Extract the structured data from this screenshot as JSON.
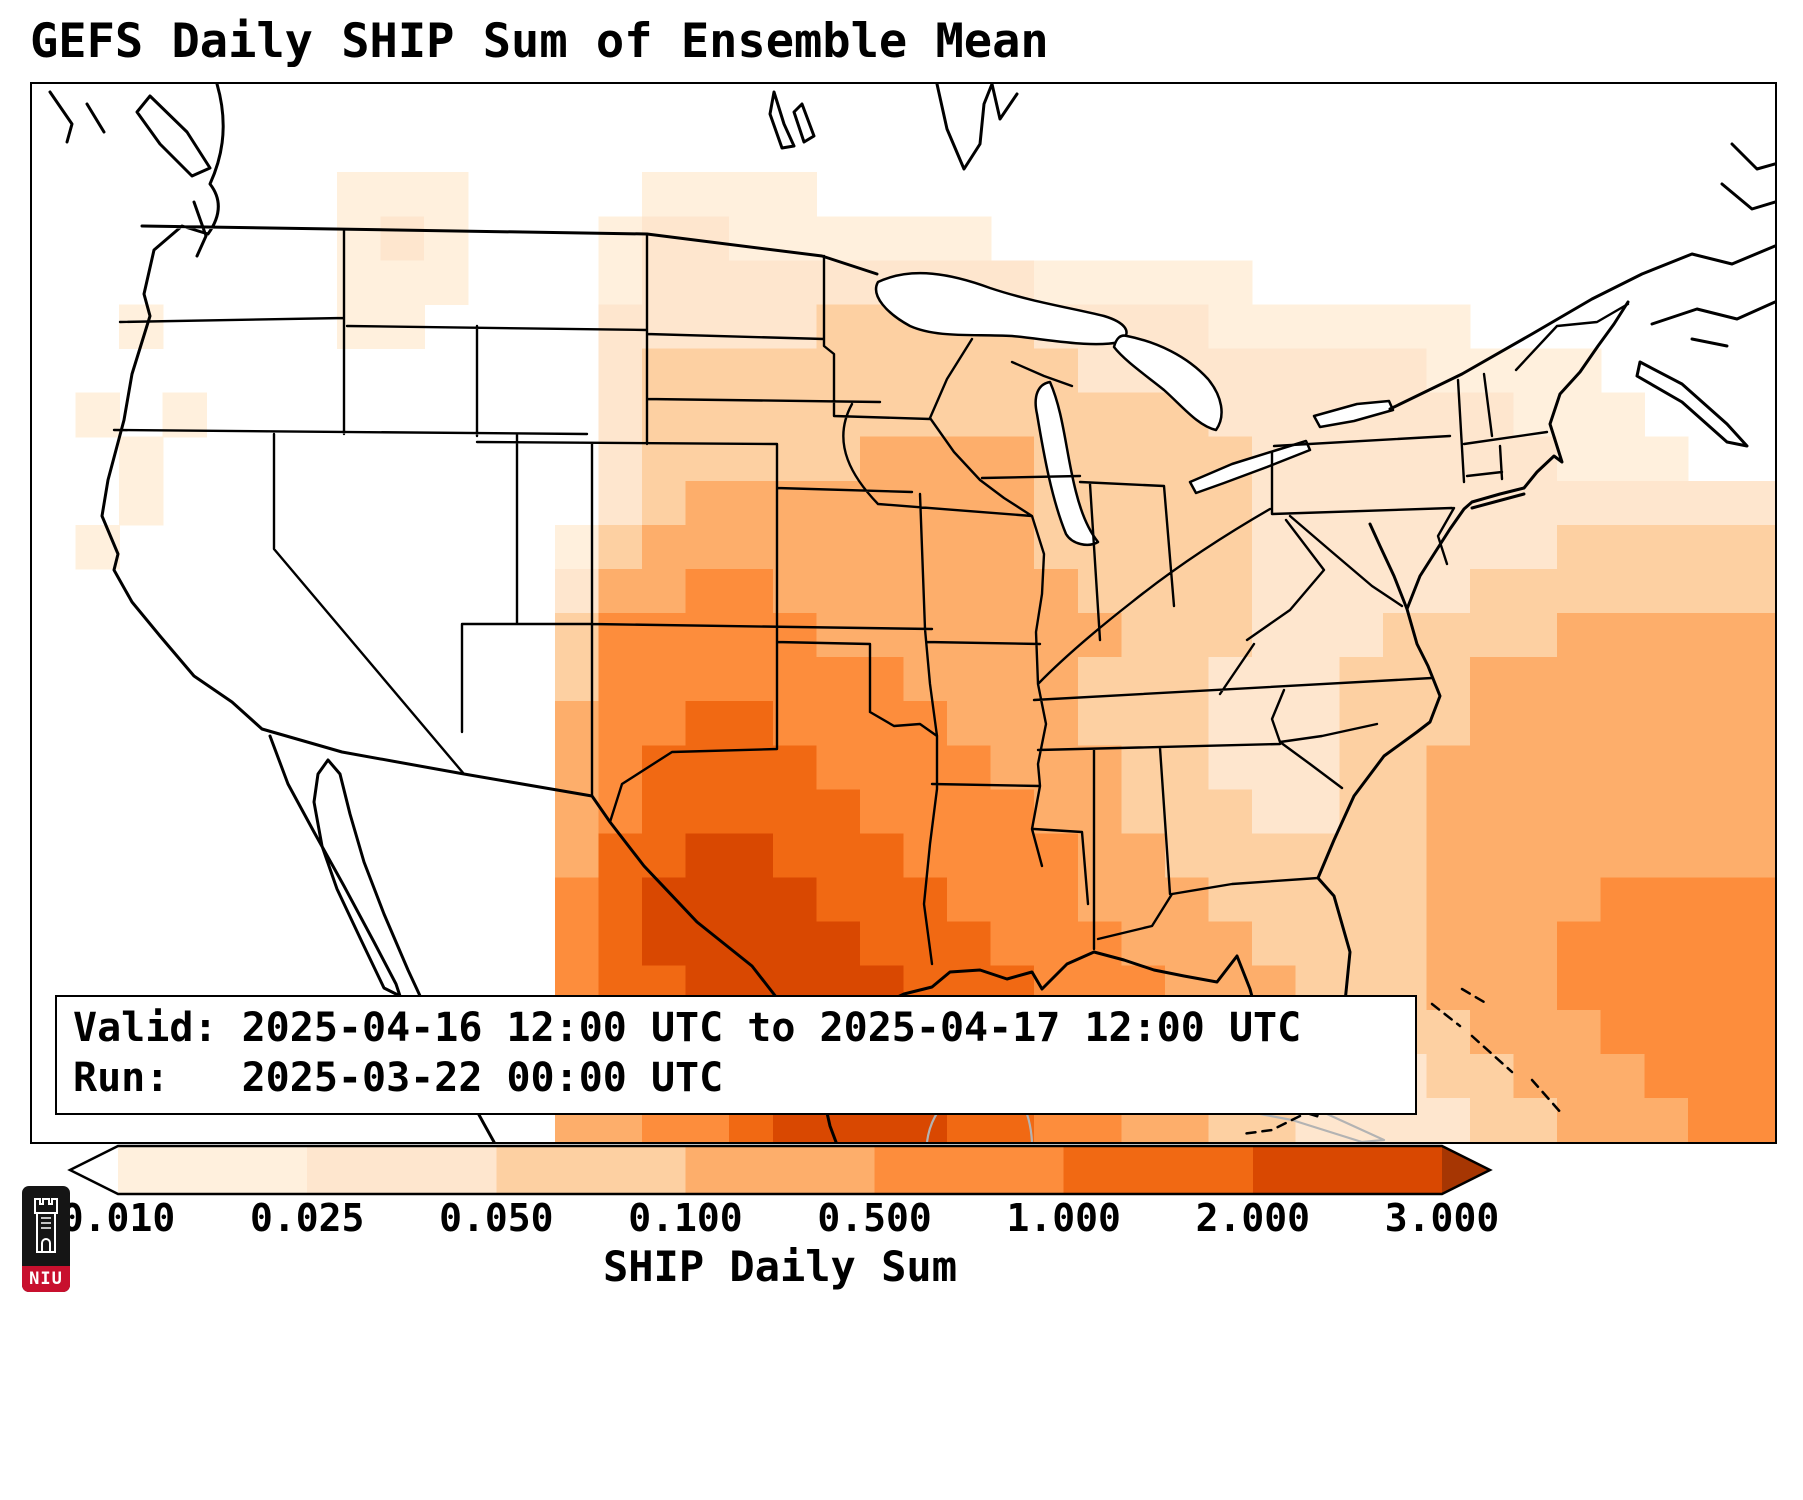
{
  "title": "GEFS Daily SHIP Sum of Ensemble Mean",
  "info_box": {
    "valid_line": "Valid: 2025-04-16 12:00 UTC to 2025-04-17 12:00 UTC",
    "run_line": "Run:   2025-03-22 00:00 UTC"
  },
  "colorbar": {
    "label": "SHIP Daily Sum",
    "tick_labels": [
      "0.010",
      "0.025",
      "0.050",
      "0.100",
      "0.500",
      "1.000",
      "2.000",
      "3.000"
    ],
    "segment_colors": [
      "#fff0dd",
      "#fee6ce",
      "#fdd0a2",
      "#fdae6b",
      "#fd8d3c",
      "#f16913",
      "#d94801"
    ],
    "under_color": "#ffffff",
    "over_color": "#a63603"
  },
  "logo": {
    "text": "NIU"
  },
  "chart_data": {
    "type": "heatmap",
    "title": "GEFS Daily SHIP Sum of Ensemble Mean",
    "variable": "SHIP Daily Sum",
    "valid": "2025-04-16 12:00 UTC to 2025-04-17 12:00 UTC",
    "run": "2025-03-22 00:00 UTC",
    "region": "CONUS",
    "color_levels": [
      0.01,
      0.025,
      0.05,
      0.1,
      0.5,
      1.0,
      2.0,
      3.0
    ],
    "palette": [
      "#ffffff",
      "#fff0dd",
      "#fee6ce",
      "#fdd0a2",
      "#fdae6b",
      "#fd8d3c",
      "#f16913",
      "#d94801",
      "#a63603"
    ],
    "legend_note": "grid digits are palette indices: 0 = below 0.010 (white), 7 = 2.000-3.000",
    "grid_cols": 40,
    "grid_rows": 24,
    "grid": [
      "0000000000000000000000000000000000000000",
      "0000000000000000000000000000000000000000",
      "0000000111000011110000000000000000000000",
      "0000000121000122111111000000000000000000",
      "0000000111000122222222211111000000000000",
      "0010000110000222223333322221111110000000",
      "0000000000000233333333332222222211110000",
      "0101000000000233333333333332222222111000",
      "0010000000000233333444433333222222211100",
      "0010000000000234444444433333222222222222",
      "0100000000001344444444433333222222233333",
      "0000000000002445544444443333222223333333",
      "0000000000003555554444444333222333344444",
      "0000000000003555555544443332223334444444",
      "0000000000004556655554443332223334444444",
      "0000000000004566665555444332223344444444",
      "0000000000004566666555544333223344444444",
      "0000000000004667766655554433333344444444",
      "0000000000005677776665554443333344445555",
      "0000000000005677777666555444333344455555",
      "0000000000005667777766655544433344455555",
      "0000000000005666777766655544433334445555",
      "0000000000004556677766554443332233444555",
      "0000000000004455677776655443322223344455"
    ]
  }
}
